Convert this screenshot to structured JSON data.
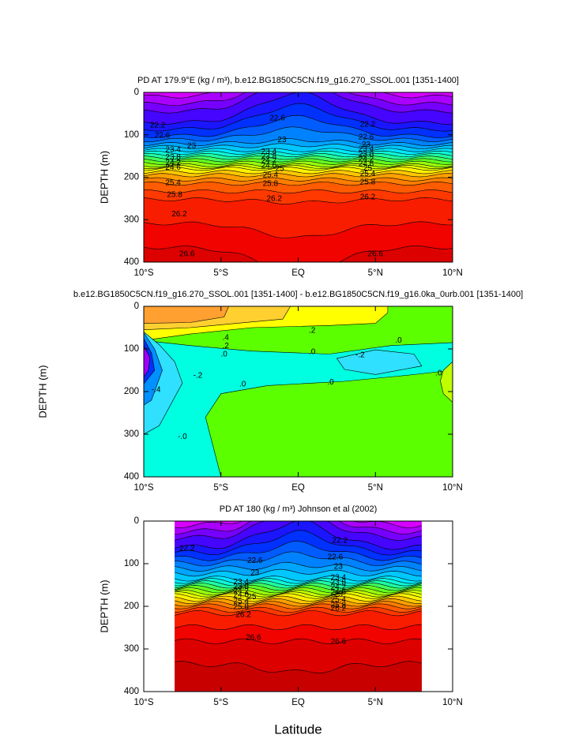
{
  "chart_data": [
    {
      "type": "contour",
      "title": "PD AT 179.9°E (kg / m³), b.e12.BG1850C5CN.f19_g16.270_SSOL.001 [1351-1400]",
      "ylabel": "DEPTH (m)",
      "xlim": [
        -10,
        10
      ],
      "xticks": [
        {
          "value": -10,
          "label": "10°S"
        },
        {
          "value": -5,
          "label": "5°S"
        },
        {
          "value": 0,
          "label": "EQ"
        },
        {
          "value": 5,
          "label": "5°N"
        },
        {
          "value": 10,
          "label": "10°N"
        }
      ],
      "ylim": [
        0,
        400
      ],
      "yticks": [
        0,
        100,
        200,
        300,
        400
      ],
      "levels": [
        21.4,
        21.6,
        21.8,
        22.0,
        22.2,
        22.4,
        22.6,
        22.8,
        23.0,
        23.2,
        23.4,
        23.6,
        23.8,
        24.0,
        24.2,
        24.4,
        24.6,
        24.8,
        25.0,
        25.2,
        25.4,
        25.6,
        25.8,
        26.0,
        26.2,
        26.4,
        26.6,
        26.8
      ],
      "colors": [
        "#ff00ff",
        "#b000ff",
        "#5000ff",
        "#0020ff",
        "#0070ff",
        "#00b0ff",
        "#00f0ff",
        "#20ffa0",
        "#60ff20",
        "#c0ff00",
        "#ffff00",
        "#ffb000",
        "#ff7000",
        "#ff3000",
        "#f00000",
        "#c80000"
      ],
      "contour_labels": [
        "22.2",
        "22.6",
        "23",
        "23.4",
        "23.8",
        "24.2",
        "24.6",
        "25.4",
        "25.8",
        "26.2",
        "26.6",
        "22.6",
        "23",
        "23.4",
        "23.8",
        "24.2",
        "24.6",
        "25",
        "25.4",
        "25.8",
        "26.2",
        "22.2",
        "22.6",
        "23",
        "23.4",
        "23.8",
        "24.2",
        "24.6",
        "25",
        "25.4",
        "25.8",
        "26.2",
        "26.6"
      ]
    },
    {
      "type": "contour",
      "title": "b.e12.BG1850C5CN.f19_g16.270_SSOL.001 [1351-1400] - b.e12.BG1850C5CN.f19_g16.0ka_0urb.001 [1351-1400]",
      "ylabel": "DEPTH (m)",
      "xlim": [
        -10,
        10
      ],
      "xticks": [
        {
          "value": -10,
          "label": "10°S"
        },
        {
          "value": -5,
          "label": "5°S"
        },
        {
          "value": 0,
          "label": "EQ"
        },
        {
          "value": 5,
          "label": "5°N"
        },
        {
          "value": 10,
          "label": "10°N"
        }
      ],
      "ylim": [
        0,
        400
      ],
      "yticks": [
        0,
        100,
        200,
        300,
        400
      ],
      "levels": [
        -0.6,
        -0.5,
        -0.4,
        -0.3,
        -0.2,
        -0.1,
        0.0,
        0.1,
        0.2,
        0.3,
        0.4,
        0.5,
        0.6
      ],
      "colors": [
        "#8000ff",
        "#a000ff",
        "#0030ff",
        "#0090ff",
        "#30e0ff",
        "#00ffe0",
        "#5cff00",
        "#c0ff00",
        "#ffff00",
        "#ffd030",
        "#ffa030",
        "#ff8000",
        "#ff4000"
      ],
      "contour_labels": [
        ".4",
        ".2",
        ".0",
        ".2",
        ".0",
        ".0",
        "-.2",
        ".0",
        "-.2",
        "-.4",
        ".0",
        ".0",
        "-.0"
      ]
    },
    {
      "type": "contour",
      "title": "PD AT 180 (kg / m³) Johnson et al (2002)",
      "ylabel": "DEPTH (m)",
      "xlabel": "Latitude",
      "xlim": [
        -10,
        10
      ],
      "data_xlim": [
        -8,
        8
      ],
      "xticks": [
        {
          "value": -10,
          "label": "10°S"
        },
        {
          "value": -5,
          "label": "5°S"
        },
        {
          "value": 0,
          "label": "EQ"
        },
        {
          "value": 5,
          "label": "5°N"
        },
        {
          "value": 10,
          "label": "10°N"
        }
      ],
      "ylim": [
        0,
        400
      ],
      "yticks": [
        0,
        100,
        200,
        300,
        400
      ],
      "levels": [
        21.4,
        21.6,
        21.8,
        22.0,
        22.2,
        22.4,
        22.6,
        22.8,
        23.0,
        23.2,
        23.4,
        23.6,
        23.8,
        24.0,
        24.2,
        24.4,
        24.6,
        24.8,
        25.0,
        25.2,
        25.4,
        25.6,
        25.8,
        26.0,
        26.2,
        26.4,
        26.6,
        26.8
      ],
      "colors": [
        "#ff00ff",
        "#b000ff",
        "#5000ff",
        "#0020ff",
        "#0070ff",
        "#00b0ff",
        "#00f0ff",
        "#20ffa0",
        "#60ff20",
        "#c0ff00",
        "#ffff00",
        "#ffb000",
        "#ff7000",
        "#ff3000",
        "#f00000",
        "#c80000"
      ],
      "contour_labels": [
        "22.2",
        "22.6",
        "23",
        "23.4",
        "23.8",
        "24.2",
        "24.6",
        "25",
        "25.4",
        "25.8",
        "26.2",
        "26.6",
        "22.2",
        "22.6",
        "23",
        "23.4",
        "23.8",
        "24.2",
        "24.6",
        "25",
        "25.4",
        "25.8",
        "26.2",
        "26.6"
      ]
    }
  ]
}
